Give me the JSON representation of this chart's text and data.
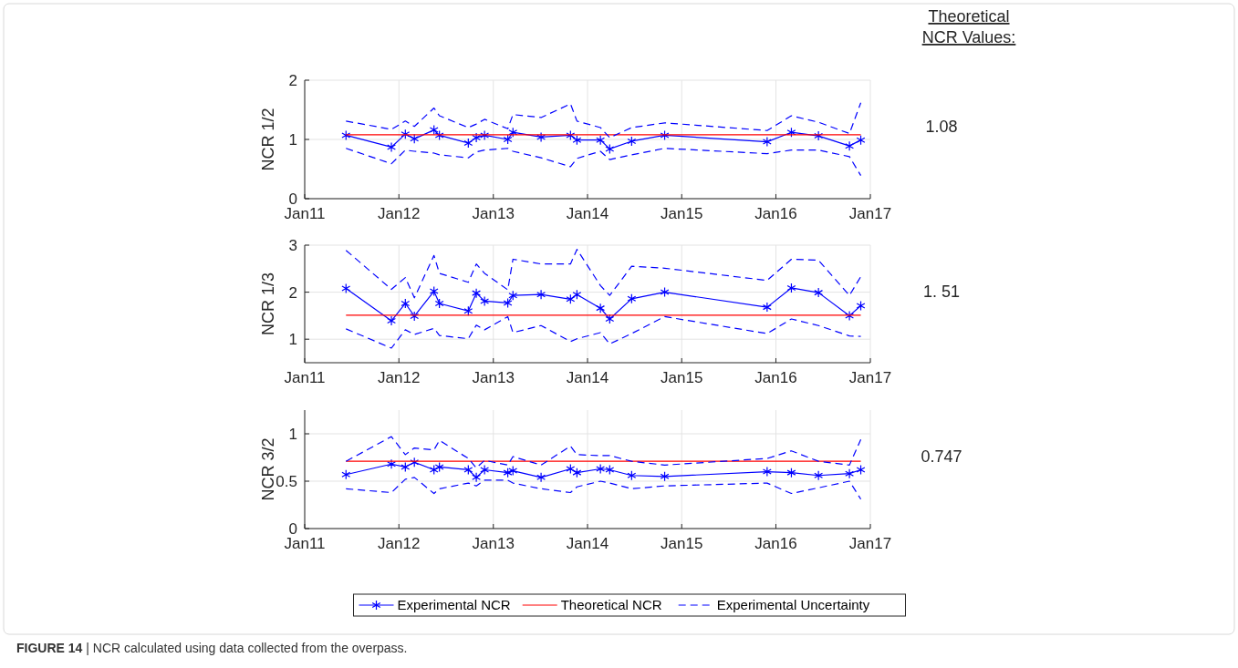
{
  "chart_data": [
    {
      "type": "line",
      "ylabel": "NCR 1/2",
      "annotations": [
        "Theoretical\nNCR Values:",
        "1.08"
      ],
      "grid": true,
      "legend": false,
      "x": [
        "2011-06-10",
        "2011-12-03",
        "2012-01-26",
        "2012-03-01",
        "2012-05-16",
        "2012-06-06",
        "2012-09-26",
        "2012-10-27",
        "2012-11-28",
        "2013-02-26",
        "2013-03-18",
        "2013-07-05",
        "2013-10-27",
        "2013-11-21",
        "2014-02-20",
        "2014-03-28",
        "2014-06-21",
        "2014-10-27",
        "2015-11-28",
        "2016-03-01",
        "2016-06-14",
        "2016-10-12",
        "2016-11-25"
      ],
      "xlim": [
        "2011-01-01",
        "2017-01-01"
      ],
      "xticks": [
        {
          "value": "2011-01-01",
          "label": "Jan11"
        },
        {
          "value": "2012-01-01",
          "label": "Jan12"
        },
        {
          "value": "2013-01-01",
          "label": "Jan13"
        },
        {
          "value": "2014-01-01",
          "label": "Jan14"
        },
        {
          "value": "2015-01-01",
          "label": "Jan15"
        },
        {
          "value": "2016-01-01",
          "label": "Jan16"
        },
        {
          "value": "2017-01-01",
          "label": "Jan17"
        }
      ],
      "ylim": [
        0,
        2
      ],
      "yticks": [
        0,
        1,
        2
      ],
      "series": [
        {
          "color": "#0000ff",
          "marker": "cross",
          "line_style": "solid",
          "values": [
            1.07,
            0.87,
            1.09,
            1.01,
            1.16,
            1.07,
            0.94,
            1.03,
            1.07,
            1.0,
            1.12,
            1.04,
            1.07,
            0.99,
            0.99,
            0.84,
            0.97,
            1.07,
            0.96,
            1.12,
            1.06,
            0.89,
            0.99
          ]
        },
        {
          "color": "#ff0000",
          "marker": "none",
          "line_style": "solid",
          "x": [
            "2011-06-10",
            "2016-11-25"
          ],
          "values": [
            1.08,
            1.08
          ]
        },
        {
          "color": "#0000ff",
          "marker": "none",
          "line_style": "dashed",
          "values": [
            1.31,
            1.17,
            1.31,
            1.22,
            1.53,
            1.4,
            1.2,
            1.26,
            1.34,
            1.18,
            1.42,
            1.37,
            1.6,
            1.31,
            1.2,
            1.03,
            1.2,
            1.28,
            1.15,
            1.4,
            1.29,
            1.1,
            1.62
          ]
        },
        {
          "color": "#0000ff",
          "marker": "none",
          "line_style": "dashed",
          "values": [
            0.85,
            0.59,
            0.82,
            0.8,
            0.77,
            0.74,
            0.69,
            0.79,
            0.82,
            0.85,
            0.8,
            0.69,
            0.54,
            0.68,
            0.8,
            0.66,
            0.74,
            0.85,
            0.76,
            0.82,
            0.82,
            0.71,
            0.39
          ]
        }
      ]
    },
    {
      "type": "line",
      "ylabel": "NCR 1/3",
      "annotations": [
        "1. 51"
      ],
      "grid": true,
      "legend": false,
      "x": [
        "2011-06-10",
        "2011-12-03",
        "2012-01-26",
        "2012-03-01",
        "2012-05-16",
        "2012-06-06",
        "2012-09-26",
        "2012-10-27",
        "2012-11-28",
        "2013-02-26",
        "2013-03-18",
        "2013-07-05",
        "2013-10-27",
        "2013-11-21",
        "2014-02-20",
        "2014-03-28",
        "2014-06-21",
        "2014-10-27",
        "2015-11-28",
        "2016-03-01",
        "2016-06-14",
        "2016-10-12",
        "2016-11-25"
      ],
      "xlim": [
        "2011-01-01",
        "2017-01-01"
      ],
      "xticks": [
        {
          "value": "2011-01-01",
          "label": "Jan11"
        },
        {
          "value": "2012-01-01",
          "label": "Jan12"
        },
        {
          "value": "2013-01-01",
          "label": "Jan13"
        },
        {
          "value": "2014-01-01",
          "label": "Jan14"
        },
        {
          "value": "2015-01-01",
          "label": "Jan15"
        },
        {
          "value": "2016-01-01",
          "label": "Jan16"
        },
        {
          "value": "2017-01-01",
          "label": "Jan17"
        }
      ],
      "ylim": [
        0.5,
        3
      ],
      "yticks": [
        1,
        2,
        3
      ],
      "series": [
        {
          "color": "#0000ff",
          "marker": "cross",
          "line_style": "solid",
          "values": [
            2.08,
            1.39,
            1.76,
            1.49,
            2.02,
            1.76,
            1.6,
            1.98,
            1.81,
            1.77,
            1.93,
            1.95,
            1.85,
            1.95,
            1.66,
            1.43,
            1.86,
            2.0,
            1.68,
            2.09,
            1.99,
            1.5,
            1.71
          ]
        },
        {
          "color": "#ff0000",
          "marker": "none",
          "line_style": "solid",
          "x": [
            "2011-06-10",
            "2016-11-25"
          ],
          "values": [
            1.51,
            1.51
          ]
        },
        {
          "color": "#0000ff",
          "marker": "none",
          "line_style": "dashed",
          "values": [
            2.89,
            2.06,
            2.31,
            1.88,
            2.78,
            2.4,
            2.21,
            2.6,
            2.4,
            2.05,
            2.7,
            2.6,
            2.6,
            2.91,
            2.14,
            1.93,
            2.55,
            2.51,
            2.25,
            2.7,
            2.68,
            1.93,
            2.33
          ]
        },
        {
          "color": "#0000ff",
          "marker": "none",
          "line_style": "dashed",
          "values": [
            1.22,
            0.81,
            1.2,
            1.1,
            1.23,
            1.08,
            1.01,
            1.3,
            1.2,
            1.48,
            1.14,
            1.29,
            0.95,
            1.01,
            1.14,
            0.9,
            1.12,
            1.48,
            1.12,
            1.43,
            1.29,
            1.07,
            1.06
          ]
        }
      ]
    },
    {
      "type": "line",
      "ylabel": "NCR 3/2",
      "annotations": [
        "0.747",
        "FIGURE 14 | NCR calculated using data collected from the overpass."
      ],
      "grid": true,
      "legend": "bottom",
      "x": [
        "2011-06-10",
        "2011-12-03",
        "2012-01-26",
        "2012-03-01",
        "2012-05-16",
        "2012-06-06",
        "2012-09-26",
        "2012-10-27",
        "2012-11-28",
        "2013-02-26",
        "2013-03-18",
        "2013-07-05",
        "2013-10-27",
        "2013-11-21",
        "2014-02-20",
        "2014-03-28",
        "2014-06-21",
        "2014-10-27",
        "2015-11-28",
        "2016-03-01",
        "2016-06-14",
        "2016-10-12",
        "2016-11-25"
      ],
      "xlim": [
        "2011-01-01",
        "2017-01-01"
      ],
      "xticks": [
        {
          "value": "2011-01-01",
          "label": "Jan11"
        },
        {
          "value": "2012-01-01",
          "label": "Jan12"
        },
        {
          "value": "2013-01-01",
          "label": "Jan13"
        },
        {
          "value": "2014-01-01",
          "label": "Jan14"
        },
        {
          "value": "2015-01-01",
          "label": "Jan15"
        },
        {
          "value": "2016-01-01",
          "label": "Jan16"
        },
        {
          "value": "2017-01-01",
          "label": "Jan17"
        }
      ],
      "ylim": [
        0,
        1.25
      ],
      "yticks": [
        0,
        0.5,
        1
      ],
      "series": [
        {
          "name": "Experimental NCR",
          "color": "#0000ff",
          "marker": "cross",
          "line_style": "solid",
          "values": [
            0.57,
            0.68,
            0.65,
            0.7,
            0.62,
            0.65,
            0.62,
            0.54,
            0.62,
            0.59,
            0.61,
            0.54,
            0.63,
            0.59,
            0.63,
            0.62,
            0.56,
            0.55,
            0.6,
            0.59,
            0.56,
            0.58,
            0.62
          ]
        },
        {
          "name": "Theoretical NCR",
          "color": "#ff0000",
          "marker": "none",
          "line_style": "solid",
          "x": [
            "2011-06-10",
            "2016-11-25"
          ],
          "values": [
            0.71,
            0.71
          ]
        },
        {
          "name": "Experimental Uncertainty",
          "color": "#0000ff",
          "marker": "none",
          "line_style": "dashed",
          "values": [
            0.71,
            0.97,
            0.78,
            0.85,
            0.83,
            0.93,
            0.74,
            0.64,
            0.72,
            0.67,
            0.76,
            0.67,
            0.87,
            0.78,
            0.77,
            0.77,
            0.71,
            0.67,
            0.74,
            0.82,
            0.71,
            0.67,
            0.94
          ]
        },
        {
          "color": "#0000ff",
          "marker": "none",
          "line_style": "dashed",
          "values": [
            0.42,
            0.38,
            0.52,
            0.54,
            0.37,
            0.42,
            0.48,
            0.45,
            0.51,
            0.51,
            0.48,
            0.42,
            0.38,
            0.44,
            0.5,
            0.48,
            0.42,
            0.45,
            0.48,
            0.37,
            0.43,
            0.5,
            0.31
          ]
        }
      ]
    }
  ]
}
